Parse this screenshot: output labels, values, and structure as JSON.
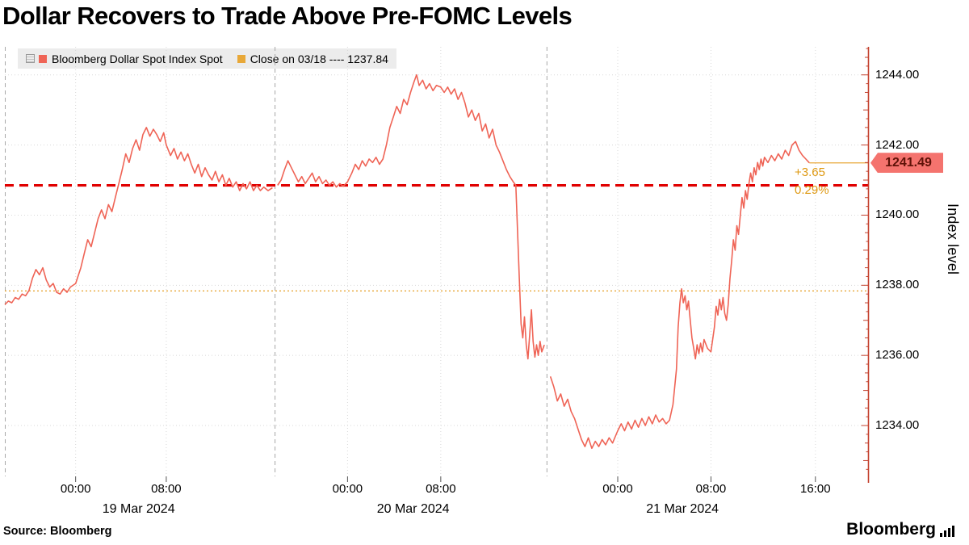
{
  "title": "Dollar Recovers to Trade Above Pre-FOMC Levels",
  "source": "Source: Bloomberg",
  "brand": "Bloomberg",
  "legend": {
    "series_label": "Bloomberg Dollar Spot Index Spot",
    "close_label": "Close on 03/18 ---- 1237.84"
  },
  "axis": {
    "y_title": "Index level"
  },
  "last_price": {
    "value": "1241.49",
    "net_change": "+3.65",
    "pct_change": "0.29%"
  },
  "colors": {
    "series": "#ef6456",
    "red_dash": "#e00000",
    "amber": "#e8a838",
    "annotation_text": "#de9810",
    "axis": "#c3402e",
    "grid": "#d8d8d8",
    "separator": "#a8a8a8",
    "badge_bg": "#f4736e",
    "badge_text": "#5f1208",
    "bottom_tick": "#555555"
  },
  "chart_data": {
    "type": "line",
    "title": "Dollar Recovers to Trade Above Pre-FOMC Levels",
    "series_name": "Bloomberg Dollar Spot Index Spot",
    "ylabel": "Index level",
    "ylim": [
      1232.55,
      1244.8
    ],
    "last": 1241.49,
    "y_ticks": [
      {
        "value": 1244,
        "label": "1244.00"
      },
      {
        "value": 1242,
        "label": "1242.00"
      },
      {
        "value": 1240,
        "label": "1240.00"
      },
      {
        "value": 1238,
        "label": "1238.00"
      },
      {
        "value": 1236,
        "label": "1236.00"
      },
      {
        "value": 1234,
        "label": "1234.00"
      }
    ],
    "x_ticks": [
      {
        "t": 0.082,
        "label": "00:00"
      },
      {
        "t": 0.187,
        "label": "08:00"
      },
      {
        "t": 0.397,
        "label": "00:00"
      },
      {
        "t": 0.505,
        "label": "08:00"
      },
      {
        "t": 0.71,
        "label": "00:00"
      },
      {
        "t": 0.818,
        "label": "08:00"
      },
      {
        "t": 0.939,
        "label": "16:00"
      }
    ],
    "date_labels": [
      {
        "t": 0.155,
        "label": "19 Mar 2024"
      },
      {
        "t": 0.473,
        "label": "20 Mar 2024"
      },
      {
        "t": 0.785,
        "label": "21 Mar 2024"
      }
    ],
    "day_separators": [
      0.313,
      0.628
    ],
    "reference_lines": {
      "close_0318": 1237.84,
      "pre_fomc": 1240.85
    },
    "points": [
      [
        0.0,
        1237.45
      ],
      [
        0.004,
        1237.55
      ],
      [
        0.008,
        1237.5
      ],
      [
        0.012,
        1237.65
      ],
      [
        0.016,
        1237.6
      ],
      [
        0.02,
        1237.75
      ],
      [
        0.024,
        1237.7
      ],
      [
        0.028,
        1237.85
      ],
      [
        0.032,
        1238.2
      ],
      [
        0.036,
        1238.45
      ],
      [
        0.04,
        1238.3
      ],
      [
        0.044,
        1238.5
      ],
      [
        0.048,
        1238.15
      ],
      [
        0.052,
        1237.95
      ],
      [
        0.056,
        1238.05
      ],
      [
        0.06,
        1237.8
      ],
      [
        0.064,
        1237.75
      ],
      [
        0.068,
        1237.9
      ],
      [
        0.072,
        1237.8
      ],
      [
        0.076,
        1237.95
      ],
      [
        0.082,
        1238.05
      ],
      [
        0.088,
        1238.5
      ],
      [
        0.092,
        1238.9
      ],
      [
        0.096,
        1239.3
      ],
      [
        0.1,
        1239.1
      ],
      [
        0.104,
        1239.5
      ],
      [
        0.108,
        1239.9
      ],
      [
        0.112,
        1240.15
      ],
      [
        0.116,
        1239.9
      ],
      [
        0.12,
        1240.3
      ],
      [
        0.124,
        1240.1
      ],
      [
        0.128,
        1240.5
      ],
      [
        0.132,
        1240.9
      ],
      [
        0.136,
        1241.3
      ],
      [
        0.14,
        1241.75
      ],
      [
        0.144,
        1241.5
      ],
      [
        0.148,
        1241.9
      ],
      [
        0.152,
        1242.15
      ],
      [
        0.156,
        1241.85
      ],
      [
        0.16,
        1242.3
      ],
      [
        0.164,
        1242.5
      ],
      [
        0.168,
        1242.25
      ],
      [
        0.172,
        1242.45
      ],
      [
        0.176,
        1242.3
      ],
      [
        0.18,
        1242.1
      ],
      [
        0.184,
        1242.35
      ],
      [
        0.187,
        1242.0
      ],
      [
        0.192,
        1241.7
      ],
      [
        0.196,
        1241.9
      ],
      [
        0.2,
        1241.6
      ],
      [
        0.204,
        1241.8
      ],
      [
        0.208,
        1241.55
      ],
      [
        0.212,
        1241.75
      ],
      [
        0.216,
        1241.45
      ],
      [
        0.22,
        1241.2
      ],
      [
        0.224,
        1241.45
      ],
      [
        0.228,
        1241.1
      ],
      [
        0.232,
        1241.35
      ],
      [
        0.236,
        1241.15
      ],
      [
        0.24,
        1241.0
      ],
      [
        0.244,
        1241.25
      ],
      [
        0.248,
        1240.95
      ],
      [
        0.252,
        1241.15
      ],
      [
        0.256,
        1240.85
      ],
      [
        0.26,
        1241.05
      ],
      [
        0.264,
        1240.8
      ],
      [
        0.268,
        1240.95
      ],
      [
        0.272,
        1240.7
      ],
      [
        0.276,
        1240.9
      ],
      [
        0.28,
        1240.75
      ],
      [
        0.284,
        1240.95
      ],
      [
        0.288,
        1240.7
      ],
      [
        0.292,
        1240.85
      ],
      [
        0.296,
        1240.7
      ],
      [
        0.3,
        1240.8
      ],
      [
        0.305,
        1240.7
      ],
      [
        0.31,
        1240.78
      ],
      [
        0.316,
        1240.85
      ],
      [
        0.32,
        1241.0
      ],
      [
        0.324,
        1241.3
      ],
      [
        0.328,
        1241.55
      ],
      [
        0.332,
        1241.35
      ],
      [
        0.336,
        1241.15
      ],
      [
        0.34,
        1240.95
      ],
      [
        0.344,
        1241.1
      ],
      [
        0.348,
        1240.9
      ],
      [
        0.352,
        1241.05
      ],
      [
        0.356,
        1241.2
      ],
      [
        0.36,
        1240.95
      ],
      [
        0.364,
        1241.1
      ],
      [
        0.368,
        1240.9
      ],
      [
        0.372,
        1241.0
      ],
      [
        0.376,
        1240.85
      ],
      [
        0.38,
        1240.95
      ],
      [
        0.384,
        1240.8
      ],
      [
        0.388,
        1240.9
      ],
      [
        0.392,
        1240.82
      ],
      [
        0.397,
        1240.95
      ],
      [
        0.402,
        1241.2
      ],
      [
        0.406,
        1241.45
      ],
      [
        0.41,
        1241.3
      ],
      [
        0.414,
        1241.55
      ],
      [
        0.418,
        1241.4
      ],
      [
        0.422,
        1241.6
      ],
      [
        0.426,
        1241.5
      ],
      [
        0.43,
        1241.65
      ],
      [
        0.434,
        1241.45
      ],
      [
        0.438,
        1241.6
      ],
      [
        0.442,
        1242.0
      ],
      [
        0.446,
        1242.5
      ],
      [
        0.45,
        1242.8
      ],
      [
        0.454,
        1243.1
      ],
      [
        0.458,
        1242.9
      ],
      [
        0.462,
        1243.3
      ],
      [
        0.466,
        1243.15
      ],
      [
        0.47,
        1243.5
      ],
      [
        0.474,
        1243.8
      ],
      [
        0.477,
        1244.0
      ],
      [
        0.48,
        1243.7
      ],
      [
        0.484,
        1243.85
      ],
      [
        0.488,
        1243.6
      ],
      [
        0.492,
        1243.75
      ],
      [
        0.496,
        1243.55
      ],
      [
        0.5,
        1243.7
      ],
      [
        0.505,
        1243.65
      ],
      [
        0.509,
        1243.5
      ],
      [
        0.513,
        1243.65
      ],
      [
        0.517,
        1243.45
      ],
      [
        0.521,
        1243.6
      ],
      [
        0.525,
        1243.3
      ],
      [
        0.529,
        1243.5
      ],
      [
        0.533,
        1243.2
      ],
      [
        0.537,
        1242.8
      ],
      [
        0.541,
        1243.0
      ],
      [
        0.545,
        1242.7
      ],
      [
        0.549,
        1242.9
      ],
      [
        0.553,
        1242.4
      ],
      [
        0.557,
        1242.6
      ],
      [
        0.561,
        1242.2
      ],
      [
        0.565,
        1242.45
      ],
      [
        0.569,
        1242.0
      ],
      [
        0.573,
        1241.8
      ],
      [
        0.577,
        1241.55
      ],
      [
        0.581,
        1241.3
      ],
      [
        0.585,
        1241.1
      ],
      [
        0.589,
        1240.95
      ],
      [
        0.592,
        1240.85
      ],
      [
        0.594,
        1239.5
      ],
      [
        0.596,
        1238.2
      ],
      [
        0.598,
        1236.9
      ],
      [
        0.6,
        1236.5
      ],
      [
        0.602,
        1237.1
      ],
      [
        0.604,
        1236.3
      ],
      [
        0.606,
        1235.9
      ],
      [
        0.608,
        1236.6
      ],
      [
        0.61,
        1237.3
      ],
      [
        0.612,
        1236.4
      ],
      [
        0.614,
        1235.95
      ],
      [
        0.616,
        1236.3
      ],
      [
        0.618,
        1236.0
      ],
      [
        0.62,
        1236.4
      ],
      [
        0.622,
        1236.1
      ],
      [
        0.625,
        1236.3
      ],
      [
        0.632,
        1235.4
      ],
      [
        0.636,
        1235.1
      ],
      [
        0.64,
        1234.7
      ],
      [
        0.644,
        1234.9
      ],
      [
        0.648,
        1234.55
      ],
      [
        0.652,
        1234.75
      ],
      [
        0.656,
        1234.4
      ],
      [
        0.66,
        1234.2
      ],
      [
        0.664,
        1233.9
      ],
      [
        0.668,
        1233.6
      ],
      [
        0.672,
        1233.4
      ],
      [
        0.676,
        1233.65
      ],
      [
        0.68,
        1233.35
      ],
      [
        0.684,
        1233.55
      ],
      [
        0.688,
        1233.4
      ],
      [
        0.692,
        1233.6
      ],
      [
        0.696,
        1233.45
      ],
      [
        0.7,
        1233.65
      ],
      [
        0.704,
        1233.5
      ],
      [
        0.71,
        1233.85
      ],
      [
        0.714,
        1234.05
      ],
      [
        0.718,
        1233.85
      ],
      [
        0.722,
        1234.1
      ],
      [
        0.726,
        1233.9
      ],
      [
        0.73,
        1234.15
      ],
      [
        0.734,
        1233.95
      ],
      [
        0.738,
        1234.2
      ],
      [
        0.742,
        1234.0
      ],
      [
        0.746,
        1234.25
      ],
      [
        0.75,
        1234.05
      ],
      [
        0.754,
        1234.3
      ],
      [
        0.758,
        1234.1
      ],
      [
        0.762,
        1234.2
      ],
      [
        0.766,
        1234.05
      ],
      [
        0.77,
        1234.15
      ],
      [
        0.774,
        1234.6
      ],
      [
        0.778,
        1235.6
      ],
      [
        0.78,
        1236.8
      ],
      [
        0.782,
        1237.5
      ],
      [
        0.784,
        1237.9
      ],
      [
        0.786,
        1237.5
      ],
      [
        0.788,
        1237.7
      ],
      [
        0.79,
        1237.3
      ],
      [
        0.792,
        1237.55
      ],
      [
        0.794,
        1237.0
      ],
      [
        0.796,
        1236.5
      ],
      [
        0.798,
        1236.2
      ],
      [
        0.8,
        1235.9
      ],
      [
        0.802,
        1236.3
      ],
      [
        0.804,
        1236.05
      ],
      [
        0.806,
        1236.35
      ],
      [
        0.808,
        1236.1
      ],
      [
        0.81,
        1236.45
      ],
      [
        0.814,
        1236.2
      ],
      [
        0.818,
        1236.1
      ],
      [
        0.822,
        1236.8
      ],
      [
        0.824,
        1237.4
      ],
      [
        0.826,
        1237.15
      ],
      [
        0.828,
        1237.6
      ],
      [
        0.83,
        1237.3
      ],
      [
        0.832,
        1237.65
      ],
      [
        0.834,
        1237.2
      ],
      [
        0.836,
        1237.0
      ],
      [
        0.838,
        1237.45
      ],
      [
        0.84,
        1238.2
      ],
      [
        0.842,
        1238.7
      ],
      [
        0.844,
        1239.3
      ],
      [
        0.846,
        1239.0
      ],
      [
        0.848,
        1239.7
      ],
      [
        0.85,
        1239.45
      ],
      [
        0.852,
        1240.0
      ],
      [
        0.854,
        1240.5
      ],
      [
        0.856,
        1240.2
      ],
      [
        0.858,
        1240.7
      ],
      [
        0.86,
        1240.45
      ],
      [
        0.862,
        1240.9
      ],
      [
        0.864,
        1241.2
      ],
      [
        0.866,
        1240.95
      ],
      [
        0.868,
        1241.35
      ],
      [
        0.87,
        1241.15
      ],
      [
        0.872,
        1241.5
      ],
      [
        0.874,
        1241.3
      ],
      [
        0.876,
        1241.6
      ],
      [
        0.878,
        1241.4
      ],
      [
        0.88,
        1241.65
      ],
      [
        0.884,
        1241.5
      ],
      [
        0.888,
        1241.7
      ],
      [
        0.892,
        1241.55
      ],
      [
        0.896,
        1241.75
      ],
      [
        0.9,
        1241.6
      ],
      [
        0.904,
        1241.85
      ],
      [
        0.908,
        1241.7
      ],
      [
        0.912,
        1242.0
      ],
      [
        0.916,
        1242.1
      ],
      [
        0.92,
        1241.85
      ],
      [
        0.924,
        1241.7
      ],
      [
        0.928,
        1241.6
      ],
      [
        0.932,
        1241.49
      ]
    ]
  }
}
